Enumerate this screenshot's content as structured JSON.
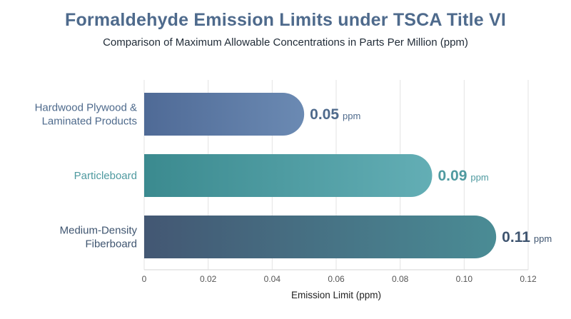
{
  "chart_data": {
    "type": "bar",
    "orientation": "horizontal",
    "title": "Formaldehyde Emission Limits under TSCA Title VI",
    "subtitle": "Comparison of Maximum Allowable Concentrations in Parts Per Million (ppm)",
    "categories": [
      [
        "Hardwood Plywood &",
        "Laminated Products"
      ],
      [
        "Particleboard"
      ],
      [
        "Medium-Density",
        "Fiberboard"
      ]
    ],
    "values": [
      0.05,
      0.09,
      0.11
    ],
    "value_labels": [
      "0.05",
      "0.09",
      "0.11"
    ],
    "value_unit": "ppm",
    "xlabel": "Emission Limit (ppm)",
    "ylabel": "",
    "xlim": [
      0,
      0.12
    ],
    "xticks": [
      0,
      0.02,
      0.04,
      0.06,
      0.08,
      0.1,
      0.12
    ],
    "xtick_labels": [
      "0",
      "0.02",
      "0.04",
      "0.06",
      "0.08",
      "0.10",
      "0.12"
    ],
    "grid": true,
    "legend": "none",
    "colors": {
      "bars": [
        [
          "#4f6a96",
          "#6b8ab3"
        ],
        [
          "#3b8a8f",
          "#63aeb5"
        ],
        [
          "#435773",
          "#4a8c95"
        ]
      ],
      "value_text": [
        "#4e6a8c",
        "#4f9aa0",
        "#3f5570"
      ],
      "category_text": [
        "#4e6a8c",
        "#4f9aa0",
        "#3f5570"
      ],
      "title": "#4e6a8c",
      "grid": "#e3e3e3"
    }
  }
}
